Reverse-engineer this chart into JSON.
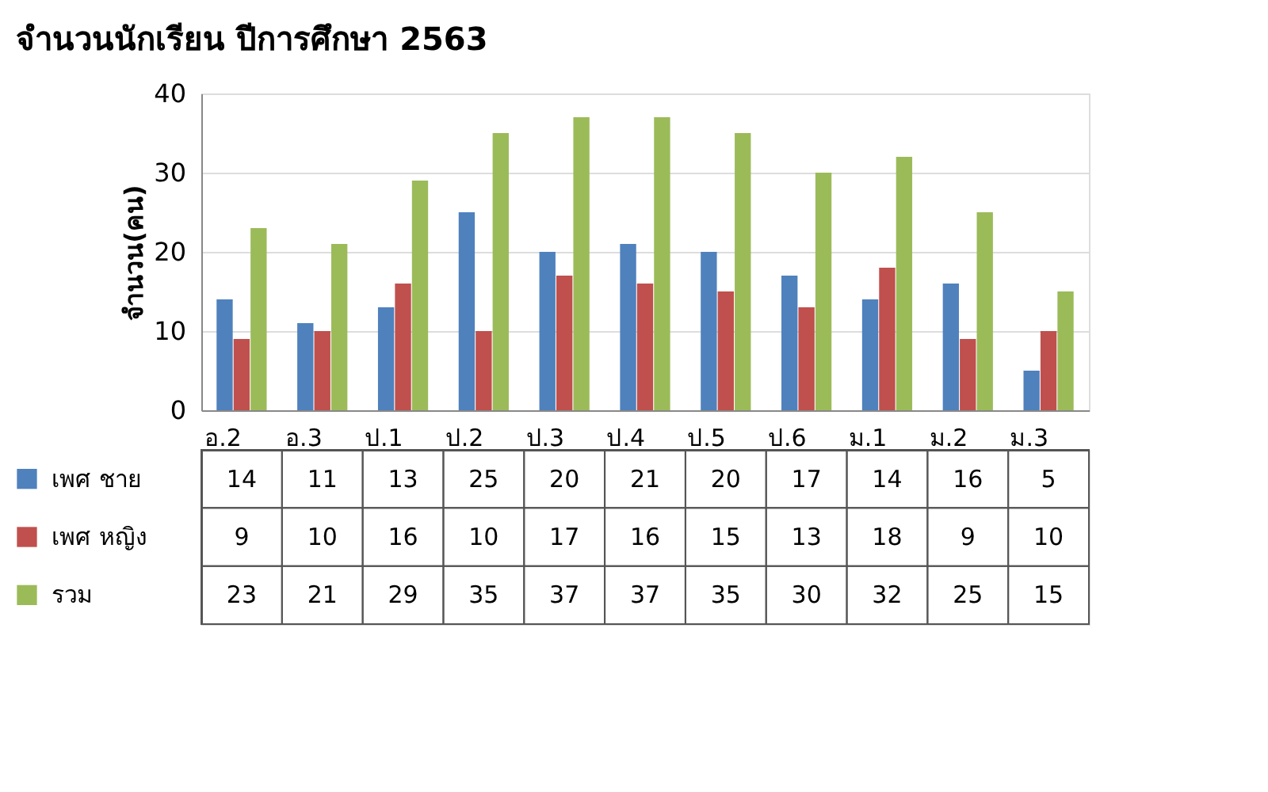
{
  "chart_data": {
    "type": "bar",
    "title": "จำนวนนักเรียน ปีการศึกษา 2563",
    "ylabel": "จำนวน(คน)",
    "categories": [
      "อ.2",
      "อ.3",
      "ป.1",
      "ป.2",
      "ป.3",
      "ป.4",
      "ป.5",
      "ป.6",
      "ม.1",
      "ม.2",
      "ม.3"
    ],
    "series": [
      {
        "name": "เพศ ชาย",
        "color": "#4f81bd",
        "values": [
          14,
          11,
          13,
          25,
          20,
          21,
          20,
          17,
          14,
          16,
          5
        ]
      },
      {
        "name": "เพศ หญิง",
        "color": "#c0504d",
        "values": [
          9,
          10,
          16,
          10,
          17,
          16,
          15,
          13,
          18,
          9,
          10
        ]
      },
      {
        "name": "รวม",
        "color": "#9bbb59",
        "values": [
          23,
          21,
          29,
          35,
          37,
          37,
          35,
          30,
          32,
          25,
          15
        ]
      }
    ],
    "ylim": [
      0,
      40
    ],
    "yticks": [
      0,
      10,
      20,
      30,
      40
    ],
    "grid": "y",
    "data_labels": true,
    "legend": "bottom"
  }
}
